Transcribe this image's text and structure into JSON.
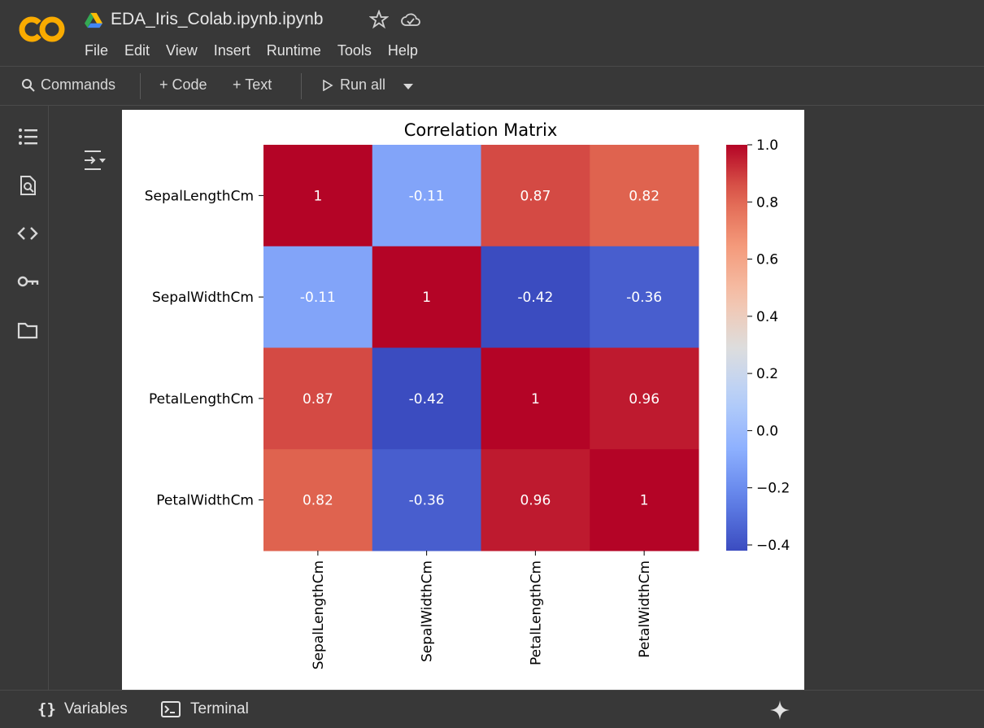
{
  "app": {
    "title": "EDA_Iris_Colab.ipynb.ipynb",
    "logo_text": "CO"
  },
  "menu": [
    "File",
    "Edit",
    "View",
    "Insert",
    "Runtime",
    "Tools",
    "Help"
  ],
  "toolbar": {
    "commands": "Commands",
    "code": "+ Code",
    "text": "+ Text",
    "run_all": "Run all"
  },
  "left_rail": [
    "table-of-contents-icon",
    "find-replace-icon",
    "code-snippets-icon",
    "secrets-key-icon",
    "files-folder-icon"
  ],
  "statusbar": {
    "variables": "Variables",
    "terminal": "Terminal"
  },
  "colors": {
    "background": "#383838",
    "accent_orange": "#f9ab00",
    "cmap_low": "#3b4cc0",
    "cmap_mid": "#dddddd",
    "cmap_high": "#b40426"
  },
  "chart_data": {
    "type": "heatmap",
    "title": "Correlation Matrix",
    "labels": [
      "SepalLengthCm",
      "SepalWidthCm",
      "PetalLengthCm",
      "PetalWidthCm"
    ],
    "matrix": [
      [
        1,
        -0.11,
        0.87,
        0.82
      ],
      [
        -0.11,
        1,
        -0.42,
        -0.36
      ],
      [
        0.87,
        -0.42,
        1,
        0.96
      ],
      [
        0.82,
        -0.36,
        0.96,
        1
      ]
    ],
    "annotations": [
      [
        "1",
        "-0.11",
        "0.87",
        "0.82"
      ],
      [
        "-0.11",
        "1",
        "-0.42",
        "-0.36"
      ],
      [
        "0.87",
        "-0.42",
        "1",
        "0.96"
      ],
      [
        "0.82",
        "-0.36",
        "0.96",
        "1"
      ]
    ],
    "colormap": "coolwarm",
    "vmin": -0.42,
    "vmax": 1.0,
    "colorbar_ticks": [
      "1.0",
      "0.8",
      "0.6",
      "0.4",
      "0.2",
      "0.0",
      "−0.2",
      "−0.4"
    ],
    "colorbar_tick_values": [
      1.0,
      0.8,
      0.6,
      0.4,
      0.2,
      0.0,
      -0.2,
      -0.4
    ]
  }
}
